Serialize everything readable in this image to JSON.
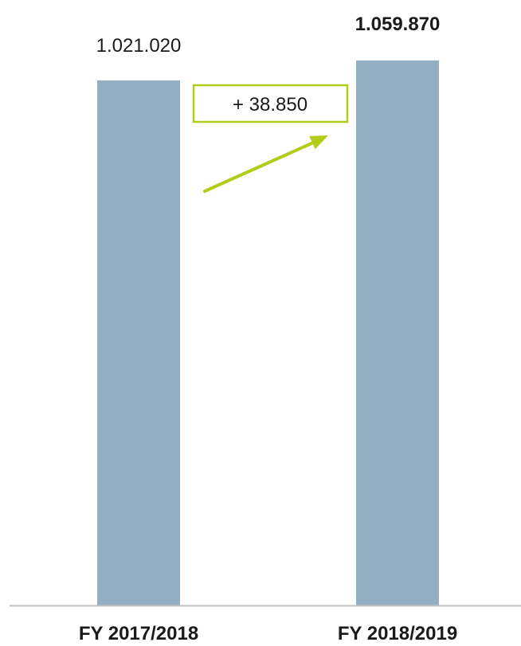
{
  "chart_data": {
    "type": "bar",
    "categories": [
      "FY 2017/2018",
      "FY 2018/2019"
    ],
    "values": [
      1021020,
      1059870
    ],
    "data_labels": [
      "1.021.020",
      "1.059.870"
    ],
    "data_label_bold": [
      false,
      true
    ],
    "ylim": [
      0,
      1100000
    ],
    "grid": false,
    "legend": "none",
    "annotation": {
      "text": "+ 38.850",
      "from_category": "FY 2017/2018",
      "to_category": "FY 2018/2019"
    },
    "colors": {
      "bar": "#93afc3",
      "axis": "#bfbfbf",
      "annotation": "#b3cc1a"
    }
  }
}
